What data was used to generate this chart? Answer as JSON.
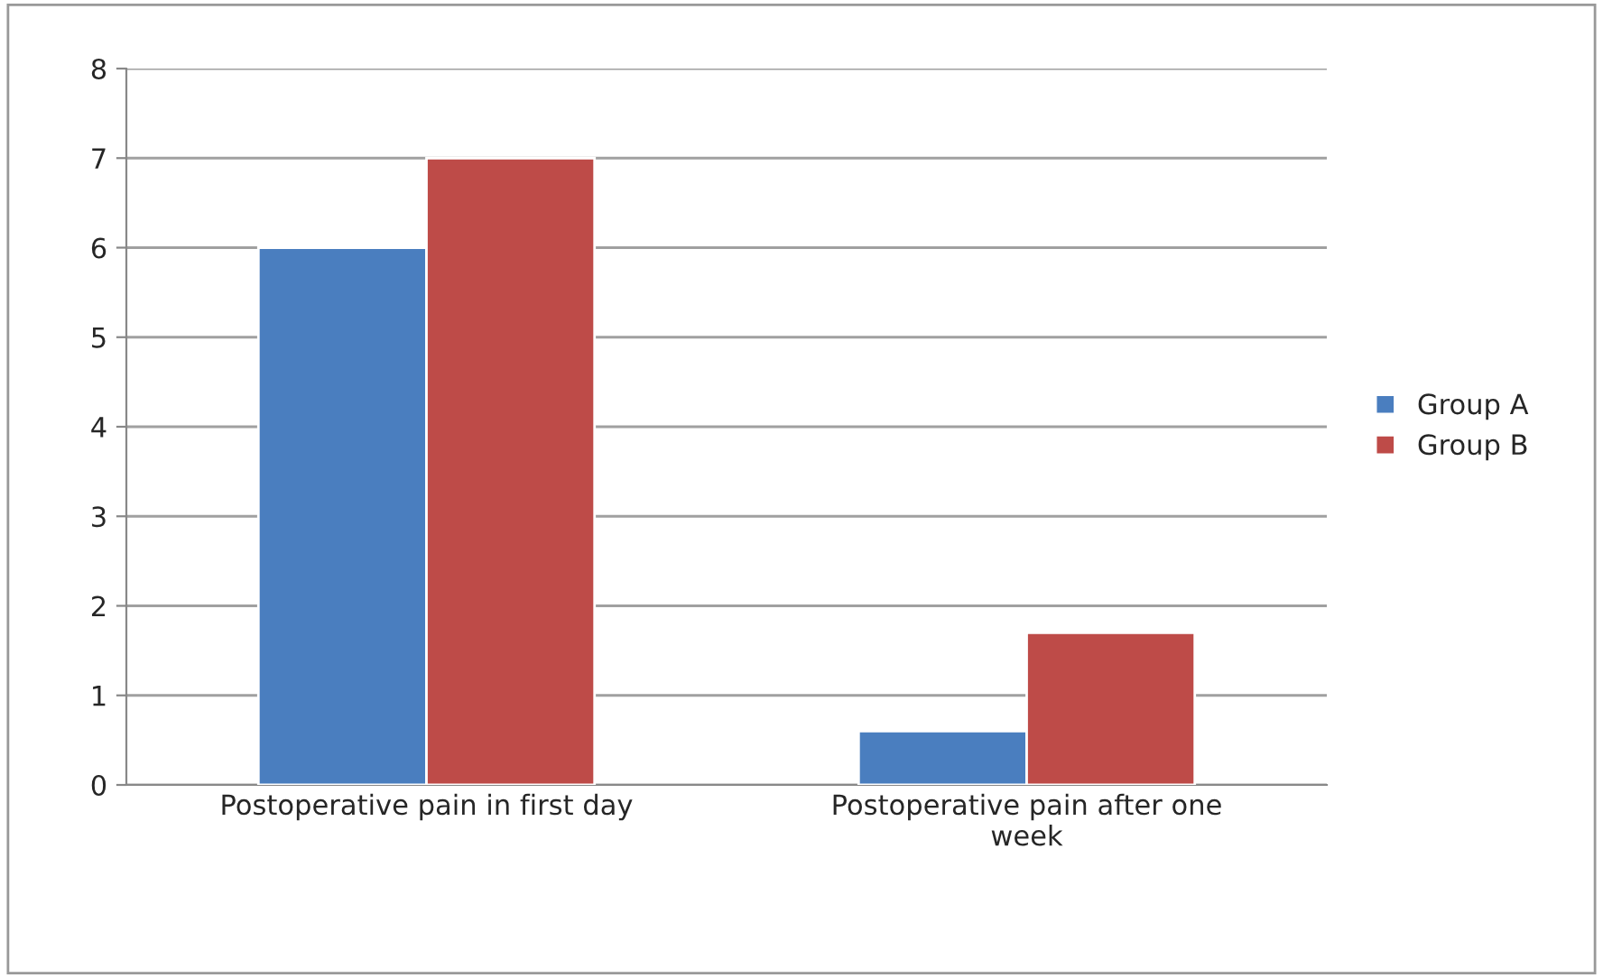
{
  "chart_data": {
    "type": "bar",
    "categories": [
      "Postoperative pain in first day",
      "Postoperative pain after one\nweek"
    ],
    "series": [
      {
        "name": "Group A",
        "color": "#4a7ebf",
        "values": [
          6,
          0.6
        ]
      },
      {
        "name": "Group B",
        "color": "#be4b48",
        "values": [
          7,
          1.7
        ]
      }
    ],
    "ylim": [
      0,
      8
    ],
    "yticks": [
      0,
      1,
      2,
      3,
      4,
      5,
      6,
      7,
      8
    ],
    "grid": "y",
    "legend": "right"
  }
}
